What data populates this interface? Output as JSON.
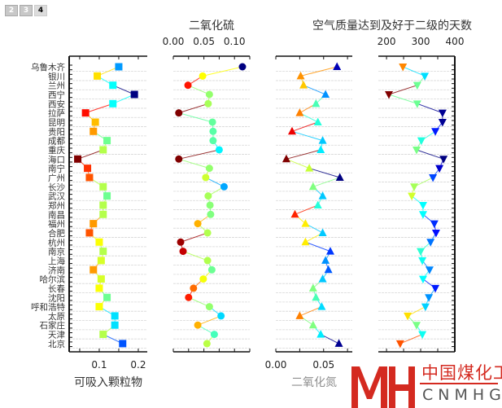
{
  "tabs": [
    {
      "label": "2",
      "active": false
    },
    {
      "label": "3",
      "active": false
    },
    {
      "label": "4",
      "active": true
    }
  ],
  "logo": {
    "cn": "中国煤化工",
    "en": "CNMHG"
  },
  "chart_data": {
    "type": "scatter",
    "cities": [
      "乌鲁木齐",
      "银川",
      "兰州",
      "西宁",
      "西安",
      "拉萨",
      "昆明",
      "贵阳",
      "成都",
      "重庆",
      "海口",
      "南宁",
      "广州",
      "长沙",
      "武汉",
      "郑州",
      "南昌",
      "福州",
      "合肥",
      "杭州",
      "南京",
      "上海",
      "济南",
      "哈尔滨",
      "长春",
      "沈阳",
      "呼和浩特",
      "太原",
      "石家庄",
      "天津",
      "北京"
    ],
    "panels": [
      {
        "name": "可吸入颗粒物",
        "title": "",
        "xlabel": "可吸入颗粒物",
        "marker": "square",
        "xlim": [
          0.023,
          0.223
        ],
        "ticks": [
          0.05,
          0.1,
          0.15,
          0.2
        ],
        "tick_labels": [
          "0.1",
          "0.2"
        ],
        "tick_label_values": [
          0.1,
          0.2
        ],
        "tick_labels_position": "bottom",
        "values": [
          0.15,
          0.095,
          0.135,
          0.19,
          0.135,
          0.065,
          0.09,
          0.085,
          0.12,
          0.11,
          0.045,
          0.07,
          0.075,
          0.11,
          0.12,
          0.11,
          0.11,
          0.085,
          0.075,
          0.1,
          0.11,
          0.105,
          0.085,
          0.105,
          0.1,
          0.12,
          0.1,
          0.14,
          0.14,
          0.11,
          0.16
        ]
      },
      {
        "name": "二氧化硫",
        "title": "二氧化硫",
        "xlabel": "",
        "marker": "circle",
        "xlim": [
          0,
          0.125
        ],
        "ticks": [
          0,
          0.025,
          0.05,
          0.075,
          0.1,
          0.125
        ],
        "tick_labels": [
          "0.00",
          "0.05",
          "0.10"
        ],
        "tick_label_values": [
          0,
          0.05,
          0.1
        ],
        "tick_labels_position": "top",
        "values": [
          0.113,
          0.048,
          0.024,
          0.059,
          0.057,
          0.009,
          0.064,
          0.065,
          0.065,
          0.075,
          0.009,
          0.059,
          0.053,
          0.083,
          0.057,
          0.06,
          0.061,
          0.04,
          0.056,
          0.012,
          0.016,
          0.056,
          0.063,
          0.049,
          0.033,
          0.025,
          0.059,
          0.078,
          0.04,
          0.067,
          0.055
        ]
      },
      {
        "name": "二氧化氮",
        "title": "",
        "xlabel": "二氧化氮",
        "marker": "triangle-up",
        "xlim": [
          0,
          0.08
        ],
        "ticks": [
          0,
          0.025,
          0.05,
          0.075
        ],
        "tick_labels": [
          "0.00",
          "0.05"
        ],
        "tick_label_values": [
          0,
          0.05
        ],
        "tick_labels_position": "bottom",
        "values": [
          0.064,
          0.026,
          0.029,
          0.052,
          0.042,
          0.025,
          0.044,
          0.017,
          0.049,
          0.047,
          0.011,
          0.035,
          0.067,
          0.039,
          0.049,
          0.044,
          0.02,
          0.031,
          0.049,
          0.031,
          0.057,
          0.052,
          0.055,
          0.049,
          0.039,
          0.042,
          0.048,
          0.025,
          0.039,
          0.047,
          0.066
        ]
      },
      {
        "name": "空气质量达到及好于二级的天数",
        "title": "空气质量达到及好于二级的天数",
        "xlabel": "",
        "marker": "triangle-down",
        "xlim": [
          176,
          400
        ],
        "ticks": [
          200,
          250,
          300,
          350
        ],
        "tick_labels": [
          "200",
          "300",
          "400"
        ],
        "tick_label_values": [
          200,
          300,
          400
        ],
        "tick_labels_position": "top",
        "values": [
          248,
          312,
          290,
          207,
          290,
          364,
          364,
          343,
          302,
          288,
          367,
          355,
          336,
          281,
          274,
          307,
          307,
          340,
          345,
          329,
          300,
          305,
          326,
          307,
          343,
          324,
          314,
          262,
          288,
          305,
          240
        ]
      }
    ],
    "grid": "horizontal dashed",
    "colormap": "jet reversed (low=red, high=blue)"
  }
}
